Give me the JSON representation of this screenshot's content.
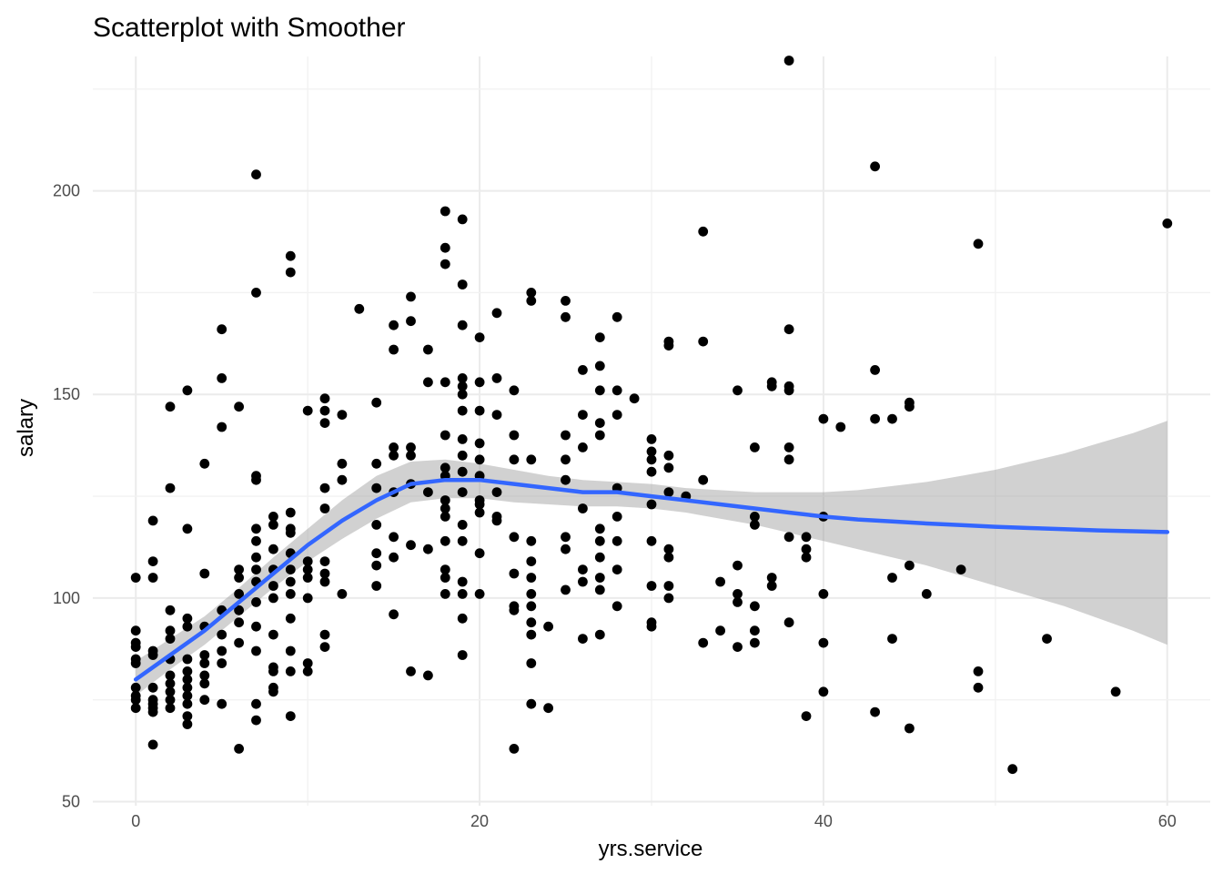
{
  "chart_data": {
    "type": "scatter",
    "title": "Scatterplot with Smoother",
    "xlabel": "yrs.service",
    "ylabel": "salary",
    "xlim": [
      -2.5,
      62.5
    ],
    "ylim": [
      49,
      233
    ],
    "x_ticks": [
      0,
      20,
      40,
      60
    ],
    "y_ticks": [
      50,
      100,
      150,
      200
    ],
    "grid": true,
    "colors": {
      "points": "#000000",
      "smooth_line": "#3366ff",
      "ribbon": "#999999",
      "grid": "#ebebeb"
    },
    "points": [
      [
        0,
        105
      ],
      [
        0,
        92
      ],
      [
        0,
        89
      ],
      [
        0,
        88
      ],
      [
        0,
        85
      ],
      [
        0,
        84
      ],
      [
        0,
        78
      ],
      [
        0,
        76
      ],
      [
        0,
        75
      ],
      [
        0,
        73
      ],
      [
        1,
        119
      ],
      [
        1,
        109
      ],
      [
        1,
        105
      ],
      [
        1,
        87
      ],
      [
        1,
        86
      ],
      [
        1,
        78
      ],
      [
        1,
        75
      ],
      [
        1,
        74
      ],
      [
        1,
        73
      ],
      [
        1,
        72
      ],
      [
        1,
        64
      ],
      [
        2,
        147
      ],
      [
        2,
        127
      ],
      [
        2,
        97
      ],
      [
        2,
        92
      ],
      [
        2,
        90
      ],
      [
        2,
        85
      ],
      [
        2,
        81
      ],
      [
        2,
        79
      ],
      [
        2,
        77
      ],
      [
        2,
        75
      ],
      [
        2,
        73
      ],
      [
        3,
        151
      ],
      [
        3,
        117
      ],
      [
        3,
        95
      ],
      [
        3,
        93
      ],
      [
        3,
        85
      ],
      [
        3,
        82
      ],
      [
        3,
        80
      ],
      [
        3,
        78
      ],
      [
        3,
        76
      ],
      [
        3,
        74
      ],
      [
        3,
        71
      ],
      [
        3,
        69
      ],
      [
        4,
        133
      ],
      [
        4,
        106
      ],
      [
        4,
        93
      ],
      [
        4,
        86
      ],
      [
        4,
        84
      ],
      [
        4,
        81
      ],
      [
        4,
        79
      ],
      [
        4,
        75
      ],
      [
        5,
        166
      ],
      [
        5,
        154
      ],
      [
        5,
        142
      ],
      [
        5,
        97
      ],
      [
        5,
        91
      ],
      [
        5,
        87
      ],
      [
        5,
        84
      ],
      [
        5,
        74
      ],
      [
        6,
        147
      ],
      [
        6,
        107
      ],
      [
        6,
        105
      ],
      [
        6,
        101
      ],
      [
        6,
        97
      ],
      [
        6,
        94
      ],
      [
        6,
        89
      ],
      [
        6,
        63
      ],
      [
        7,
        204
      ],
      [
        7,
        175
      ],
      [
        7,
        130
      ],
      [
        7,
        129
      ],
      [
        7,
        117
      ],
      [
        7,
        114
      ],
      [
        7,
        110
      ],
      [
        7,
        107
      ],
      [
        7,
        104
      ],
      [
        7,
        99
      ],
      [
        7,
        93
      ],
      [
        7,
        87
      ],
      [
        7,
        74
      ],
      [
        7,
        70
      ],
      [
        8,
        120
      ],
      [
        8,
        118
      ],
      [
        8,
        112
      ],
      [
        8,
        107
      ],
      [
        8,
        103
      ],
      [
        8,
        100
      ],
      [
        8,
        91
      ],
      [
        8,
        83
      ],
      [
        8,
        82
      ],
      [
        8,
        78
      ],
      [
        8,
        77
      ],
      [
        9,
        184
      ],
      [
        9,
        180
      ],
      [
        9,
        121
      ],
      [
        9,
        117
      ],
      [
        9,
        116
      ],
      [
        9,
        111
      ],
      [
        9,
        107
      ],
      [
        9,
        104
      ],
      [
        9,
        101
      ],
      [
        9,
        95
      ],
      [
        9,
        87
      ],
      [
        9,
        82
      ],
      [
        9,
        71
      ],
      [
        10,
        146
      ],
      [
        10,
        109
      ],
      [
        10,
        107
      ],
      [
        10,
        105
      ],
      [
        10,
        100
      ],
      [
        10,
        84
      ],
      [
        10,
        82
      ],
      [
        11,
        149
      ],
      [
        11,
        146
      ],
      [
        11,
        143
      ],
      [
        11,
        127
      ],
      [
        11,
        122
      ],
      [
        11,
        109
      ],
      [
        11,
        106
      ],
      [
        11,
        104
      ],
      [
        11,
        91
      ],
      [
        11,
        88
      ],
      [
        12,
        145
      ],
      [
        12,
        133
      ],
      [
        12,
        129
      ],
      [
        12,
        101
      ],
      [
        13,
        171
      ],
      [
        14,
        148
      ],
      [
        14,
        133
      ],
      [
        14,
        127
      ],
      [
        14,
        118
      ],
      [
        14,
        111
      ],
      [
        14,
        108
      ],
      [
        14,
        103
      ],
      [
        15,
        167
      ],
      [
        15,
        161
      ],
      [
        15,
        137
      ],
      [
        15,
        135
      ],
      [
        15,
        126
      ],
      [
        15,
        115
      ],
      [
        15,
        110
      ],
      [
        15,
        96
      ],
      [
        16,
        174
      ],
      [
        16,
        168
      ],
      [
        16,
        137
      ],
      [
        16,
        135
      ],
      [
        16,
        128
      ],
      [
        16,
        113
      ],
      [
        16,
        82
      ],
      [
        17,
        161
      ],
      [
        17,
        153
      ],
      [
        17,
        126
      ],
      [
        17,
        112
      ],
      [
        17,
        81
      ],
      [
        18,
        195
      ],
      [
        18,
        186
      ],
      [
        18,
        182
      ],
      [
        18,
        153
      ],
      [
        18,
        140
      ],
      [
        18,
        132
      ],
      [
        18,
        130
      ],
      [
        18,
        124
      ],
      [
        18,
        122
      ],
      [
        18,
        120
      ],
      [
        18,
        114
      ],
      [
        18,
        107
      ],
      [
        18,
        105
      ],
      [
        18,
        101
      ],
      [
        19,
        193
      ],
      [
        19,
        177
      ],
      [
        19,
        167
      ],
      [
        19,
        154
      ],
      [
        19,
        152
      ],
      [
        19,
        150
      ],
      [
        19,
        146
      ],
      [
        19,
        139
      ],
      [
        19,
        135
      ],
      [
        19,
        131
      ],
      [
        19,
        126
      ],
      [
        19,
        118
      ],
      [
        19,
        114
      ],
      [
        19,
        104
      ],
      [
        19,
        101
      ],
      [
        19,
        95
      ],
      [
        19,
        86
      ],
      [
        20,
        164
      ],
      [
        20,
        153
      ],
      [
        20,
        146
      ],
      [
        20,
        138
      ],
      [
        20,
        134
      ],
      [
        20,
        130
      ],
      [
        20,
        124
      ],
      [
        20,
        123
      ],
      [
        20,
        121
      ],
      [
        20,
        111
      ],
      [
        20,
        101
      ],
      [
        21,
        170
      ],
      [
        21,
        154
      ],
      [
        21,
        145
      ],
      [
        21,
        126
      ],
      [
        21,
        120
      ],
      [
        21,
        119
      ],
      [
        22,
        151
      ],
      [
        22,
        140
      ],
      [
        22,
        134
      ],
      [
        22,
        115
      ],
      [
        22,
        106
      ],
      [
        22,
        98
      ],
      [
        22,
        97
      ],
      [
        22,
        63
      ],
      [
        23,
        175
      ],
      [
        23,
        173
      ],
      [
        23,
        134
      ],
      [
        23,
        114
      ],
      [
        23,
        109
      ],
      [
        23,
        105
      ],
      [
        23,
        101
      ],
      [
        23,
        98
      ],
      [
        23,
        94
      ],
      [
        23,
        91
      ],
      [
        23,
        84
      ],
      [
        23,
        74
      ],
      [
        24,
        93
      ],
      [
        24,
        73
      ],
      [
        25,
        173
      ],
      [
        25,
        169
      ],
      [
        25,
        140
      ],
      [
        25,
        134
      ],
      [
        25,
        129
      ],
      [
        25,
        115
      ],
      [
        25,
        112
      ],
      [
        25,
        102
      ],
      [
        26,
        156
      ],
      [
        26,
        145
      ],
      [
        26,
        137
      ],
      [
        26,
        122
      ],
      [
        26,
        107
      ],
      [
        26,
        104
      ],
      [
        26,
        90
      ],
      [
        27,
        164
      ],
      [
        27,
        157
      ],
      [
        27,
        151
      ],
      [
        27,
        143
      ],
      [
        27,
        140
      ],
      [
        27,
        117
      ],
      [
        27,
        114
      ],
      [
        27,
        110
      ],
      [
        27,
        105
      ],
      [
        27,
        102
      ],
      [
        27,
        91
      ],
      [
        28,
        169
      ],
      [
        28,
        151
      ],
      [
        28,
        145
      ],
      [
        28,
        127
      ],
      [
        28,
        120
      ],
      [
        28,
        114
      ],
      [
        28,
        107
      ],
      [
        28,
        98
      ],
      [
        29,
        149
      ],
      [
        30,
        139
      ],
      [
        30,
        136
      ],
      [
        30,
        134
      ],
      [
        30,
        131
      ],
      [
        30,
        123
      ],
      [
        30,
        114
      ],
      [
        30,
        103
      ],
      [
        30,
        94
      ],
      [
        30,
        93
      ],
      [
        31,
        163
      ],
      [
        31,
        162
      ],
      [
        31,
        135
      ],
      [
        31,
        132
      ],
      [
        31,
        126
      ],
      [
        31,
        112
      ],
      [
        31,
        110
      ],
      [
        31,
        103
      ],
      [
        31,
        100
      ],
      [
        32,
        125
      ],
      [
        33,
        190
      ],
      [
        33,
        163
      ],
      [
        33,
        129
      ],
      [
        33,
        89
      ],
      [
        34,
        104
      ],
      [
        34,
        92
      ],
      [
        35,
        151
      ],
      [
        35,
        108
      ],
      [
        35,
        101
      ],
      [
        35,
        99
      ],
      [
        35,
        88
      ],
      [
        36,
        137
      ],
      [
        36,
        120
      ],
      [
        36,
        118
      ],
      [
        36,
        98
      ],
      [
        36,
        92
      ],
      [
        36,
        89
      ],
      [
        37,
        153
      ],
      [
        37,
        152
      ],
      [
        37,
        105
      ],
      [
        37,
        103
      ],
      [
        38,
        232
      ],
      [
        38,
        166
      ],
      [
        38,
        152
      ],
      [
        38,
        151
      ],
      [
        38,
        137
      ],
      [
        38,
        134
      ],
      [
        38,
        115
      ],
      [
        38,
        94
      ],
      [
        39,
        115
      ],
      [
        39,
        112
      ],
      [
        39,
        110
      ],
      [
        39,
        71
      ],
      [
        40,
        144
      ],
      [
        40,
        120
      ],
      [
        40,
        101
      ],
      [
        40,
        89
      ],
      [
        40,
        77
      ],
      [
        41,
        142
      ],
      [
        43,
        206
      ],
      [
        43,
        156
      ],
      [
        43,
        144
      ],
      [
        43,
        72
      ],
      [
        44,
        144
      ],
      [
        44,
        105
      ],
      [
        44,
        90
      ],
      [
        45,
        148
      ],
      [
        45,
        147
      ],
      [
        45,
        108
      ],
      [
        45,
        68
      ],
      [
        46,
        101
      ],
      [
        48,
        107
      ],
      [
        49,
        187
      ],
      [
        49,
        82
      ],
      [
        49,
        78
      ],
      [
        51,
        58
      ],
      [
        53,
        90
      ],
      [
        57,
        77
      ],
      [
        60,
        192
      ]
    ],
    "smooth": {
      "x": [
        0,
        2,
        4,
        6,
        8,
        10,
        12,
        14,
        16,
        18,
        20,
        22,
        24,
        26,
        28,
        30,
        32,
        34,
        36,
        38,
        40,
        42,
        44,
        46,
        48,
        50,
        52,
        54,
        56,
        58,
        60
      ],
      "y": [
        80,
        86,
        92,
        99,
        106,
        113,
        119,
        124,
        128,
        129,
        129,
        128,
        127,
        126,
        126,
        125,
        124,
        123,
        122,
        121,
        120,
        119.3,
        118.8,
        118.3,
        117.9,
        117.5,
        117.2,
        116.9,
        116.6,
        116.4,
        116.2
      ],
      "upper": [
        84.5,
        90,
        95.5,
        102.5,
        110,
        117,
        124,
        130,
        133.5,
        134,
        133,
        131.5,
        130,
        129,
        128.5,
        128,
        127,
        126.5,
        126,
        126,
        126,
        126.5,
        127.5,
        128.5,
        130,
        131.5,
        133.5,
        135.5,
        138,
        140.5,
        143.5
      ],
      "lower": [
        76,
        82.5,
        88.5,
        95.5,
        102.5,
        109,
        114.5,
        119.5,
        123.5,
        124.5,
        124.5,
        123.5,
        123,
        122.5,
        122.5,
        122,
        121,
        119.5,
        118,
        116,
        114,
        112,
        110,
        108,
        105.5,
        103,
        100.5,
        98,
        95,
        92,
        88.5
      ]
    }
  }
}
